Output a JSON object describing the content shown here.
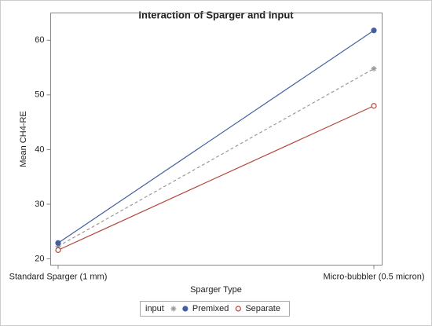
{
  "chart_data": {
    "type": "line",
    "title": "Interaction of Sparger and Input",
    "x_label": "Sparger Type",
    "y_label": "Mean CH4-RE",
    "categories": [
      "Standard Sparger (1 mm)",
      "Micro-bubbler (0.5 micron)"
    ],
    "series": [
      {
        "color": "#9a9a9a",
        "marker": "star",
        "dash": true,
        "values": [
          22.3,
          54.8
        ]
      },
      {
        "name": "Premixed",
        "color": "#445fa0",
        "marker": "filled-circle",
        "dash": false,
        "values": [
          22.9,
          61.8
        ]
      },
      {
        "name": "Separate",
        "color": "#b5463c",
        "marker": "open-circle",
        "dash": false,
        "values": [
          21.6,
          48.0
        ]
      }
    ],
    "legend_title": "input",
    "ylim": [
      18.85,
      65.0
    ],
    "yticks": [
      20,
      30,
      40,
      50,
      60
    ]
  }
}
